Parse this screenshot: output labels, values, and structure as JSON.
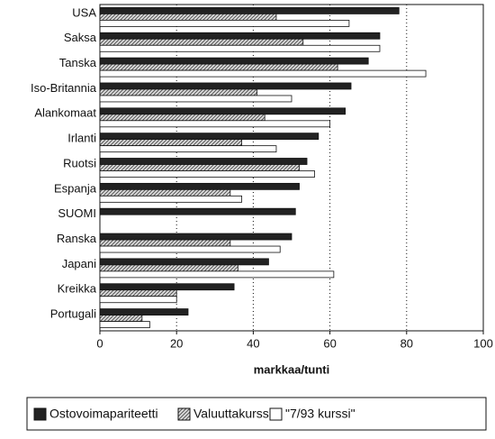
{
  "chart_data": {
    "type": "barh",
    "xlabel": "markkaa/tunti",
    "categories": [
      "USA",
      "Saksa",
      "Tanska",
      "Iso-Britannia",
      "Alankomaat",
      "Irlanti",
      "Ruotsi",
      "Espanja",
      "SUOMI",
      "Ranska",
      "Japani",
      "Kreikka",
      "Portugali"
    ],
    "series": [
      {
        "name": "Ostovoimapariteetti",
        "color": "#222222",
        "values": [
          78,
          73,
          70,
          65.5,
          64,
          57,
          54,
          52,
          51,
          50,
          44,
          35,
          23
        ]
      },
      {
        "name": "Valuuttakurssi",
        "color": "#aaaaaa",
        "values": [
          46,
          53,
          62,
          41,
          43,
          37,
          52,
          34,
          null,
          34,
          36,
          20,
          11
        ]
      },
      {
        "name": "\"7/93 kurssi\"",
        "color": "#ffffff",
        "values": [
          65,
          73,
          85,
          50,
          60,
          46,
          56,
          37,
          null,
          47,
          61,
          20,
          13
        ]
      }
    ],
    "xlim": [
      0,
      100
    ],
    "xticks": [
      0,
      20,
      40,
      60,
      80,
      100
    ],
    "grid": true
  }
}
